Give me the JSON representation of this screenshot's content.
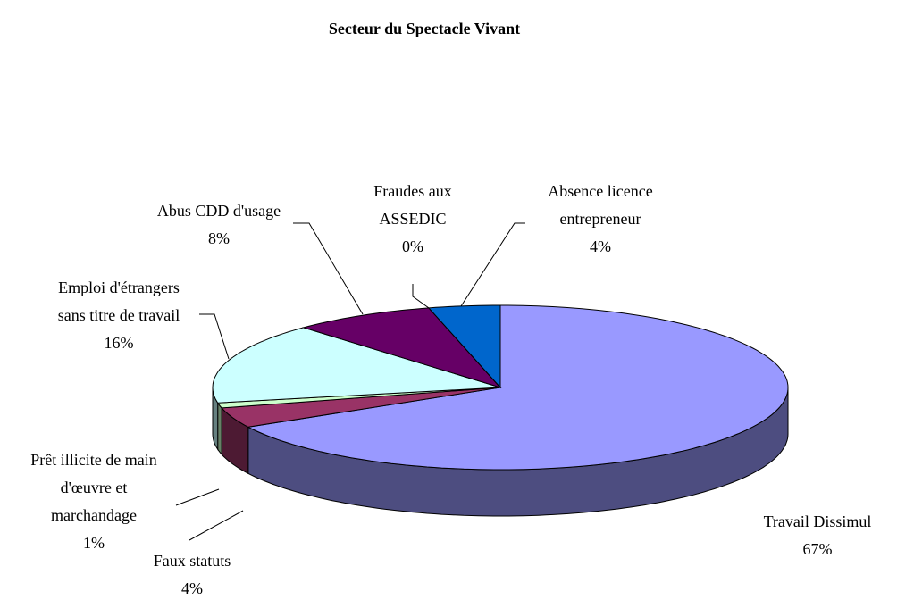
{
  "chart_data": {
    "type": "pie3d",
    "title": "Secteur du Spectacle Vivant",
    "categories": [
      [
        "Travail Dissimul"
      ],
      [
        "Faux statuts"
      ],
      [
        "Prêt illicite de main",
        "d'œuvre et",
        "marchandage"
      ],
      [
        "Emploi d'étrangers",
        "sans titre de travail"
      ],
      [
        "Abus CDD d'usage"
      ],
      [
        "Fraudes aux",
        "ASSEDIC"
      ],
      [
        "Absence licence",
        "entrepreneur"
      ]
    ],
    "values": [
      67,
      4,
      1,
      16,
      8,
      0,
      4
    ],
    "value_labels": [
      "67%",
      "4%",
      "1%",
      "16%",
      "8%",
      "0%",
      "4%"
    ],
    "colors": [
      "#9999ff",
      "#993366",
      "#ccffcc",
      "#ccffff",
      "#660066",
      "#ffffcc",
      "#0066cc"
    ]
  }
}
